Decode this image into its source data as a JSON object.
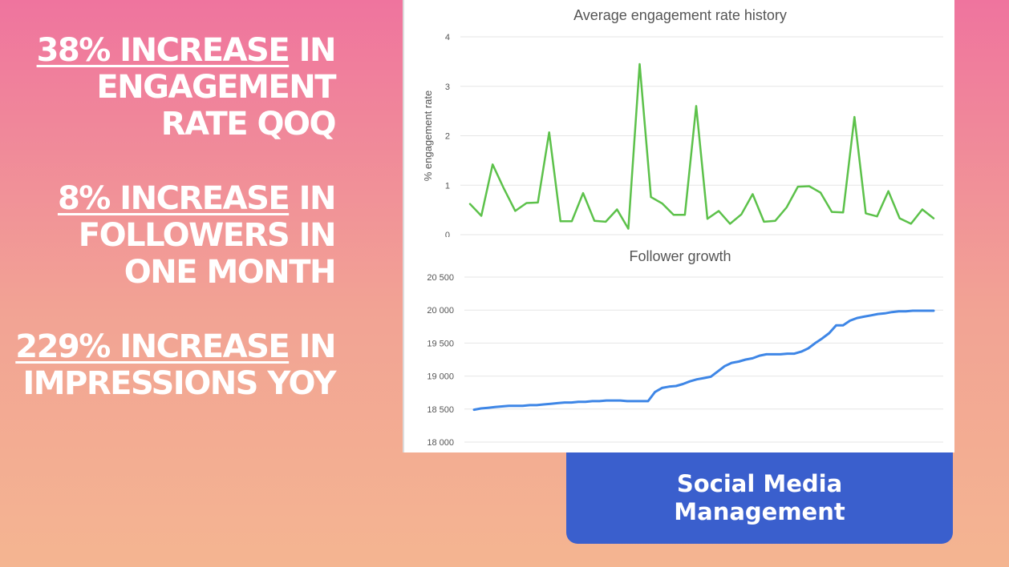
{
  "stats": [
    {
      "highlight": "38% INCREASE",
      "rest": " IN ENGAGEMENT RATE QOQ"
    },
    {
      "highlight": "8% INCREASE",
      "rest": " IN FOLLOWERS IN ONE MONTH"
    },
    {
      "highlight": "229% INCREASE",
      "rest": " IN IMPRESSIONS YOY"
    }
  ],
  "badge": {
    "label": "Social Media Management",
    "color": "#3a5fcd"
  },
  "chart_data": [
    {
      "type": "line",
      "title": "Average engagement rate history",
      "xlabel": "",
      "ylabel": "% engagement rate",
      "ylim": [
        0,
        4
      ],
      "y_ticks": [
        "4",
        "3",
        "2",
        "1",
        "0"
      ],
      "grid": true,
      "series": [
        {
          "color": "#5cc14a",
          "values": [
            0.62,
            0.38,
            1.42,
            0.93,
            0.48,
            0.64,
            0.65,
            2.07,
            0.27,
            0.27,
            0.84,
            0.28,
            0.26,
            0.51,
            0.12,
            3.45,
            0.76,
            0.63,
            0.4,
            0.4,
            2.6,
            0.32,
            0.48,
            0.22,
            0.41,
            0.82,
            0.26,
            0.28,
            0.55,
            0.97,
            0.98,
            0.85,
            0.46,
            0.45,
            2.38,
            0.43,
            0.37,
            0.88,
            0.33,
            0.22,
            0.51,
            0.33
          ]
        }
      ]
    },
    {
      "type": "line",
      "title": "Follower growth",
      "xlabel": "",
      "ylabel": "",
      "ylim": [
        18000,
        20500
      ],
      "y_ticks": [
        "20 500",
        "20 000",
        "19 500",
        "19 000",
        "18 500",
        "18 000"
      ],
      "grid": true,
      "series": [
        {
          "color": "#3e86e6",
          "values": [
            18490,
            18510,
            18520,
            18530,
            18540,
            18550,
            18550,
            18550,
            18560,
            18560,
            18570,
            18580,
            18590,
            18600,
            18600,
            18610,
            18610,
            18620,
            18620,
            18630,
            18630,
            18630,
            18620,
            18620,
            18620,
            18620,
            18760,
            18820,
            18840,
            18850,
            18880,
            18920,
            18950,
            18970,
            18990,
            19070,
            19150,
            19200,
            19220,
            19250,
            19270,
            19310,
            19330,
            19330,
            19330,
            19340,
            19340,
            19370,
            19420,
            19500,
            19570,
            19650,
            19770,
            19770,
            19840,
            19880,
            19900,
            19920,
            19940,
            19950,
            19970,
            19980,
            19980,
            19990,
            19990,
            19990,
            19990
          ]
        }
      ]
    }
  ]
}
